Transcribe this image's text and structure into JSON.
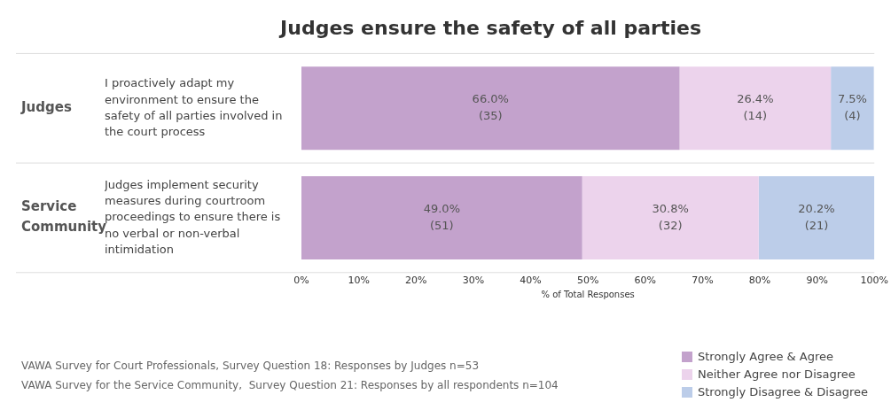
{
  "chart_data": {
    "type": "bar",
    "orientation": "horizontal",
    "stacked": true,
    "title": "Judges ensure the safety of all parties",
    "categories": [
      "I proactively adapt my environment to ensure the safety of all parties involved in the court process",
      "Judges implement security measures during courtroom proceedings to ensure there is no verbal or non-verbal intimidation"
    ],
    "series": [
      {
        "name": "Strongly Agree & Agree",
        "color": "#c3a2cc",
        "values": [
          66.0,
          49.0
        ],
        "value_labels": [
          "66.0%\n(35)",
          "49.0%\n(51)"
        ]
      },
      {
        "name": "Neither Agree nor Disagree",
        "color": "#ecd3ec",
        "values": [
          26.4,
          30.8
        ],
        "value_labels": [
          "26.4%\n(14)",
          "30.8%\n(32)"
        ]
      },
      {
        "name": "Strongly Disagree & Disagree",
        "color": "#bccde9",
        "values": [
          7.5,
          20.2
        ],
        "value_labels": [
          "7.5%\n(4)",
          "20.2%\n(21)"
        ]
      }
    ],
    "xlim": [
      0,
      100
    ],
    "xticks": [
      {
        "value": 0,
        "label": "0%"
      },
      {
        "value": 10,
        "label": "10%"
      },
      {
        "value": 20,
        "label": "20%"
      },
      {
        "value": 30,
        "label": "30%"
      },
      {
        "value": 40,
        "label": "40%"
      },
      {
        "value": 50,
        "label": "50%"
      },
      {
        "value": 60,
        "label": "60%"
      },
      {
        "value": 70,
        "label": "70%"
      },
      {
        "value": 80,
        "label": "80%"
      },
      {
        "value": 90,
        "label": "90%"
      },
      {
        "value": 100,
        "label": "100%"
      }
    ],
    "xlabel": "% of Total Responses",
    "legend": "bottom right",
    "grid": false,
    "annotations": [
      "Judges",
      "Service Community",
      "VAWA Survey for Court Professionals, Survey Question 18: Responses by Judges n=53",
      "VAWA Survey for the Service Community,  Survey Question 21: Responses by all respondents n=104"
    ]
  }
}
